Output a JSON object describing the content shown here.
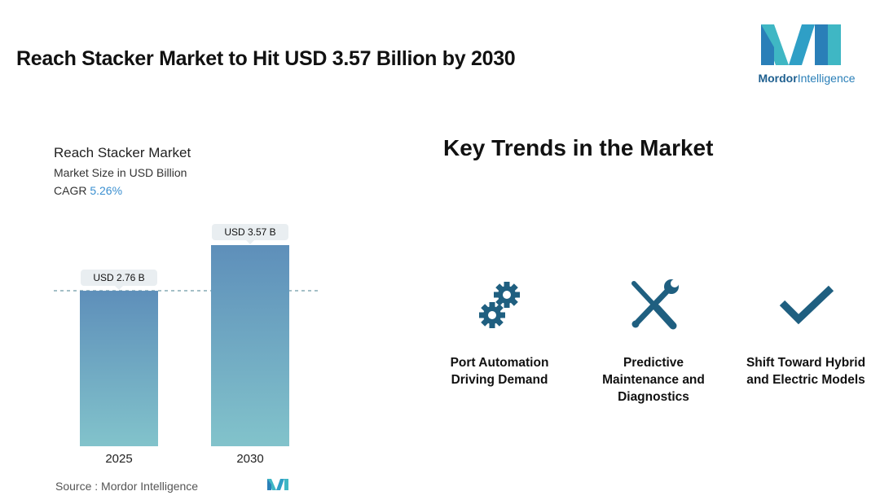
{
  "header": {
    "title": "Reach Stacker Market to Hit USD 3.57 Billion by 2030",
    "logo_brand": "Mordor",
    "logo_suffix": "Intelligence"
  },
  "chart_data": {
    "type": "bar",
    "title": "Reach Stacker Market",
    "subtitle": "Market Size in USD Billion",
    "cagr_label": "CAGR",
    "cagr_value": "5.26%",
    "categories": [
      "2025",
      "2030"
    ],
    "values": [
      2.76,
      3.57
    ],
    "data_labels": [
      "USD 2.76 B",
      "USD 3.57 B"
    ],
    "ylim": [
      0,
      3.57
    ],
    "grid": false,
    "reference_line": "dashed line at first bar value",
    "colors": {
      "bar_top": "#5e8fba",
      "bar_bottom": "#82c3cb",
      "label_bg": "#e9eef1",
      "reference_line": "#4a7f8f"
    }
  },
  "source": {
    "label": "Source :",
    "name": "Mordor Intelligence"
  },
  "trends": {
    "title": "Key Trends in the Market",
    "items": [
      {
        "icon": "gears-icon",
        "label_lines": [
          "Port Automation",
          "Driving Demand"
        ]
      },
      {
        "icon": "tools-icon",
        "label_lines": [
          "Predictive",
          "Maintenance and",
          "Diagnostics"
        ]
      },
      {
        "icon": "checkmark-icon",
        "label_lines": [
          "Shift Toward Hybrid",
          "and Electric Models"
        ]
      }
    ],
    "icon_color": "#1f5f80"
  }
}
